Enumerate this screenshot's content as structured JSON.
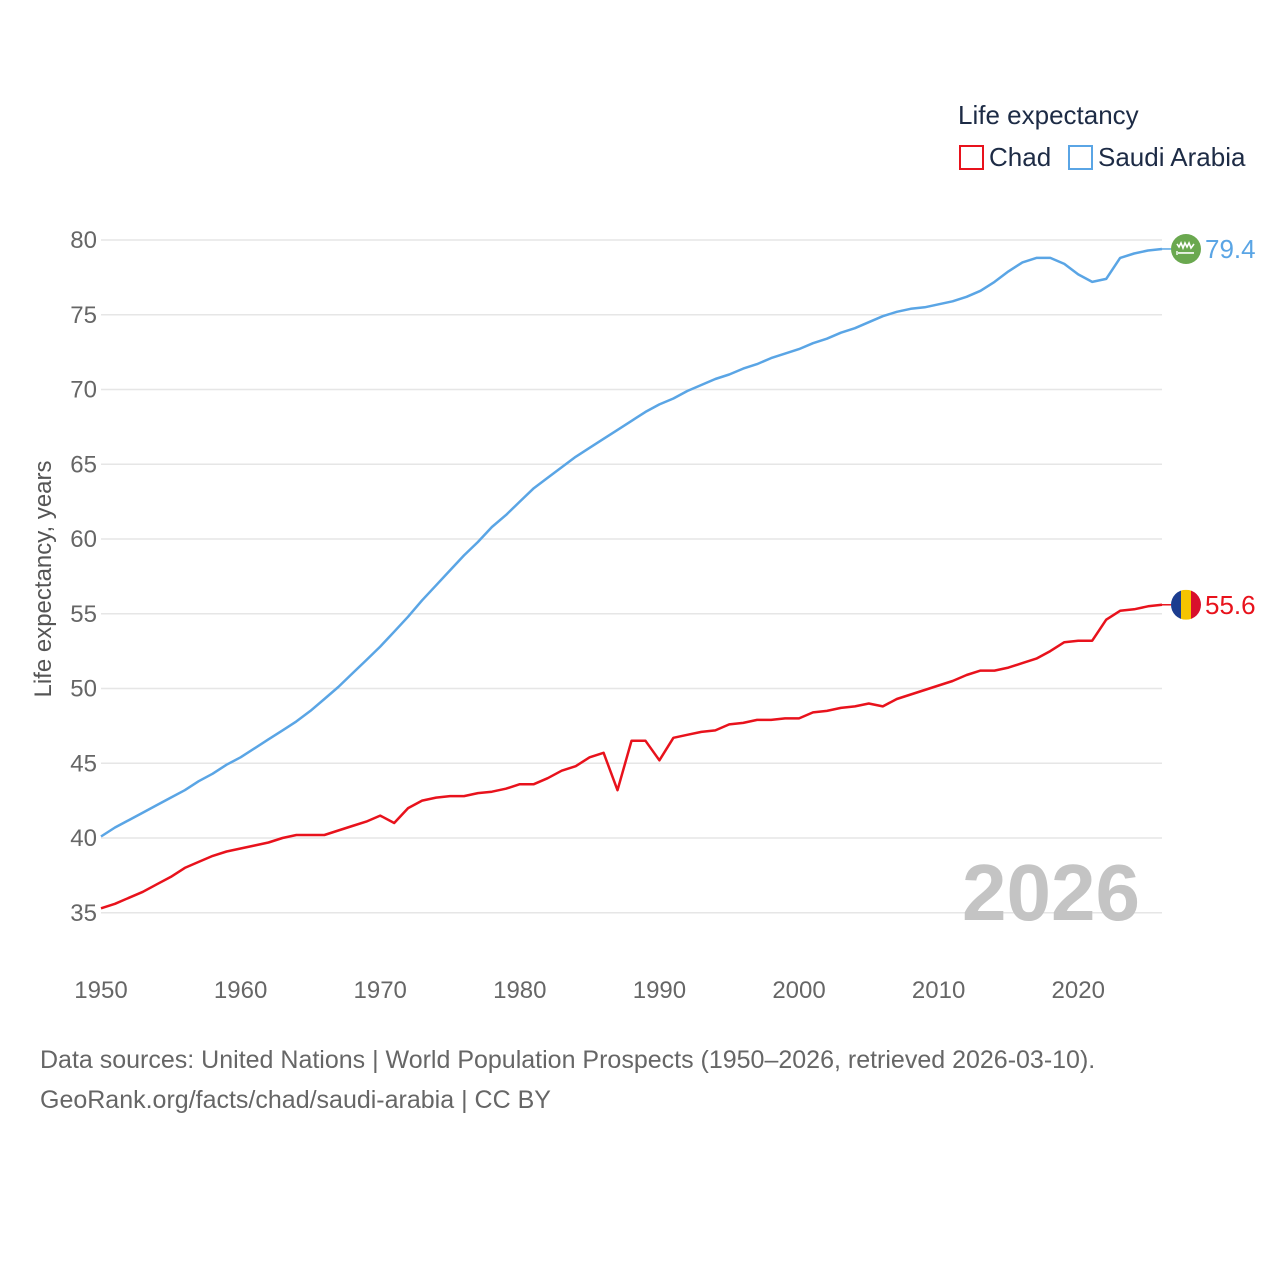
{
  "chart_data": {
    "type": "line",
    "legend_title": "Life expectancy",
    "legend_position": "top-right",
    "ylabel": "Life expectancy, years",
    "xlabel": "",
    "xlim": [
      1950,
      2026
    ],
    "ylim": [
      32,
      82
    ],
    "x_ticks": [
      1950,
      1960,
      1970,
      1980,
      1990,
      2000,
      2010,
      2020
    ],
    "x_tick_labels": [
      "1950",
      "1960",
      "1970",
      "1980",
      "1990",
      "2000",
      "2010",
      "2020"
    ],
    "y_ticks": [
      35,
      40,
      45,
      50,
      55,
      60,
      65,
      70,
      75,
      80
    ],
    "y_tick_labels": [
      "35",
      "40",
      "45",
      "50",
      "55",
      "60",
      "65",
      "70",
      "75",
      "80"
    ],
    "grid": true,
    "current_year_label": "2026",
    "series": [
      {
        "name": "Chad",
        "color": "#e8121c",
        "end_value_label": "55.6",
        "flag_icon": "chad-flag-icon",
        "start_year": 1950,
        "values": [
          35.3,
          35.6,
          36.0,
          36.4,
          36.9,
          37.4,
          38.0,
          38.4,
          38.8,
          39.1,
          39.3,
          39.5,
          39.7,
          40.0,
          40.2,
          40.2,
          40.2,
          40.5,
          40.8,
          41.1,
          41.5,
          41.0,
          42.0,
          42.5,
          42.7,
          42.8,
          42.8,
          43.0,
          43.1,
          43.3,
          43.6,
          43.6,
          44.0,
          44.5,
          44.8,
          45.4,
          45.7,
          43.2,
          46.5,
          46.5,
          45.2,
          46.7,
          46.9,
          47.1,
          47.2,
          47.6,
          47.7,
          47.9,
          47.9,
          48.0,
          48.0,
          48.4,
          48.5,
          48.7,
          48.8,
          49.0,
          48.8,
          49.3,
          49.6,
          49.9,
          50.2,
          50.5,
          50.9,
          51.2,
          51.2,
          51.4,
          51.7,
          52.0,
          52.5,
          53.1,
          53.2,
          53.2,
          54.6,
          55.2,
          55.3,
          55.5,
          55.6
        ]
      },
      {
        "name": "Saudi Arabia",
        "color": "#5aa5e5",
        "end_value_label": "79.4",
        "flag_icon": "saudi-arabia-flag-icon",
        "start_year": 1950,
        "values": [
          40.1,
          40.7,
          41.2,
          41.7,
          42.2,
          42.7,
          43.2,
          43.8,
          44.3,
          44.9,
          45.4,
          46.0,
          46.6,
          47.2,
          47.8,
          48.5,
          49.3,
          50.1,
          51.0,
          51.9,
          52.8,
          53.8,
          54.8,
          55.9,
          56.9,
          57.9,
          58.9,
          59.8,
          60.8,
          61.6,
          62.5,
          63.4,
          64.1,
          64.8,
          65.5,
          66.1,
          66.7,
          67.3,
          67.9,
          68.5,
          69.0,
          69.4,
          69.9,
          70.3,
          70.7,
          71.0,
          71.4,
          71.7,
          72.1,
          72.4,
          72.7,
          73.1,
          73.4,
          73.8,
          74.1,
          74.5,
          74.9,
          75.2,
          75.4,
          75.5,
          75.7,
          75.9,
          76.2,
          76.6,
          77.2,
          77.9,
          78.5,
          78.8,
          78.8,
          78.4,
          77.7,
          77.2,
          77.4,
          78.8,
          79.1,
          79.3,
          79.4
        ]
      }
    ]
  },
  "footer": {
    "source_line1": "Data sources: United Nations | World Population Prospects (1950–2026, retrieved 2026-03-10).",
    "source_line2": "GeoRank.org/facts/chad/saudi-arabia | CC BY"
  }
}
